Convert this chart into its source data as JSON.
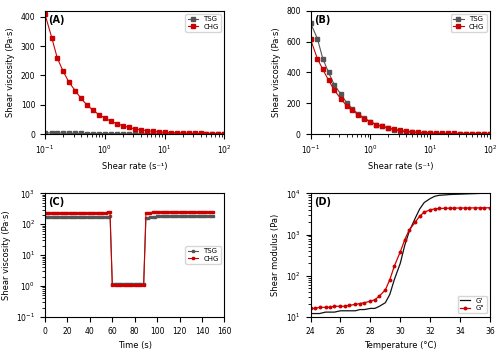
{
  "panel_A": {
    "title": "(A)",
    "xlabel": "Shear rate (s⁻¹)",
    "ylabel": "Shear viscosity (Pa·s)",
    "xlim": [
      0.1,
      100
    ],
    "ylim": [
      0,
      420
    ],
    "yticks": [
      0,
      100,
      200,
      300,
      400
    ],
    "TSG_color": "#555555",
    "CHG_color": "#cc0000",
    "TSG_x": [
      0.1,
      0.13,
      0.16,
      0.2,
      0.25,
      0.32,
      0.4,
      0.5,
      0.63,
      0.79,
      1.0,
      1.26,
      1.58,
      2.0,
      2.51,
      3.16,
      3.98,
      5.01,
      6.31,
      7.94,
      10.0,
      12.59,
      15.85,
      19.95,
      25.12,
      31.62,
      39.81,
      50.12,
      63.1,
      79.43,
      100.0
    ],
    "TSG_y": [
      5,
      4,
      4,
      3,
      3,
      3,
      2.5,
      2,
      2,
      2,
      1.8,
      1.5,
      1.5,
      1.5,
      1.3,
      1.2,
      1.2,
      1.0,
      1.0,
      0.9,
      0.8,
      0.8,
      0.7,
      0.7,
      0.6,
      0.5,
      0.5,
      0.4,
      0.4,
      0.3,
      0.2
    ],
    "CHG_x": [
      0.1,
      0.13,
      0.16,
      0.2,
      0.25,
      0.32,
      0.4,
      0.5,
      0.63,
      0.79,
      1.0,
      1.26,
      1.58,
      2.0,
      2.51,
      3.16,
      3.98,
      5.01,
      6.31,
      7.94,
      10.0,
      12.59,
      15.85,
      19.95,
      25.12,
      31.62,
      39.81,
      50.12,
      63.1,
      79.43,
      100.0
    ],
    "CHG_y": [
      408,
      328,
      260,
      215,
      178,
      148,
      122,
      100,
      82,
      67,
      55,
      44,
      36,
      29,
      23,
      18,
      15,
      12,
      10,
      8,
      6.5,
      5.5,
      4.5,
      3.8,
      3.2,
      2.8,
      2.4,
      2.0,
      1.8,
      1.5,
      1.2
    ]
  },
  "panel_B": {
    "title": "(B)",
    "xlabel": "Shear rate (s⁻¹)",
    "ylabel": "Shear viscosity (Pa·s)",
    "xlim": [
      0.1,
      100
    ],
    "ylim": [
      0,
      800
    ],
    "yticks": [
      0,
      200,
      400,
      600,
      800
    ],
    "TSG_color": "#555555",
    "CHG_color": "#cc0000",
    "TSG_x": [
      0.1,
      0.13,
      0.16,
      0.2,
      0.25,
      0.32,
      0.4,
      0.5,
      0.63,
      0.79,
      1.0,
      1.26,
      1.58,
      2.0,
      2.51,
      3.16,
      3.98,
      5.01,
      6.31,
      7.94,
      10.0,
      12.59,
      15.85,
      19.95,
      25.12,
      31.62,
      39.81,
      50.12,
      63.1,
      79.43,
      100.0
    ],
    "TSG_y": [
      720,
      620,
      490,
      400,
      320,
      260,
      205,
      165,
      130,
      105,
      80,
      62,
      50,
      40,
      30,
      22,
      16,
      12,
      8,
      6,
      5,
      4,
      3,
      2.5,
      2,
      1.8,
      1.5,
      1.3,
      1.1,
      0.9,
      0.7
    ],
    "CHG_x": [
      0.1,
      0.13,
      0.16,
      0.2,
      0.25,
      0.32,
      0.4,
      0.5,
      0.63,
      0.79,
      1.0,
      1.26,
      1.58,
      2.0,
      2.51,
      3.16,
      3.98,
      5.01,
      6.31,
      7.94,
      10.0,
      12.59,
      15.85,
      19.95,
      25.12,
      31.62,
      39.81,
      50.12,
      63.1,
      79.43,
      100.0
    ],
    "CHG_y": [
      615,
      490,
      420,
      350,
      285,
      230,
      185,
      155,
      125,
      100,
      80,
      62,
      50,
      40,
      31,
      24,
      19,
      15,
      12,
      10,
      8,
      7,
      6,
      5,
      4.5,
      4,
      3.5,
      3.2,
      2.8,
      2.5,
      2.0
    ]
  },
  "panel_C": {
    "title": "(C)",
    "xlabel": "Time (s)",
    "ylabel": "Shear viscosity (Pa·s)",
    "xlim": [
      0,
      160
    ],
    "ylim": [
      0.1,
      1000
    ],
    "xticks": [
      0,
      20,
      40,
      60,
      80,
      100,
      120,
      140,
      160
    ],
    "TSG_color": "#555555",
    "CHG_color": "#cc0000",
    "TSG_x": [
      0,
      2,
      4,
      6,
      8,
      10,
      12,
      14,
      16,
      18,
      20,
      22,
      24,
      26,
      28,
      30,
      32,
      34,
      36,
      38,
      40,
      42,
      44,
      46,
      48,
      50,
      52,
      54,
      56,
      58,
      60,
      62,
      64,
      66,
      68,
      70,
      72,
      74,
      76,
      78,
      80,
      82,
      84,
      86,
      88,
      90,
      92,
      94,
      96,
      98,
      100,
      102,
      104,
      106,
      108,
      110,
      112,
      114,
      116,
      118,
      120,
      122,
      124,
      126,
      128,
      130,
      132,
      134,
      136,
      138,
      140,
      142,
      144,
      146,
      148,
      150
    ],
    "TSG_y": [
      170,
      170,
      170,
      170,
      170,
      170,
      170,
      170,
      170,
      170,
      170,
      170,
      170,
      170,
      170,
      170,
      170,
      170,
      170,
      170,
      170,
      170,
      170,
      170,
      170,
      170,
      170,
      170,
      175,
      180,
      1.2,
      1.2,
      1.2,
      1.2,
      1.2,
      1.2,
      1.2,
      1.2,
      1.2,
      1.2,
      1.2,
      1.2,
      1.2,
      1.2,
      1.2,
      160,
      165,
      170,
      175,
      175,
      180,
      180,
      180,
      180,
      180,
      180,
      180,
      185,
      185,
      185,
      185,
      185,
      185,
      185,
      185,
      185,
      185,
      185,
      185,
      185,
      185,
      185,
      185,
      185,
      185,
      185,
      185
    ],
    "CHG_x": [
      0,
      2,
      4,
      6,
      8,
      10,
      12,
      14,
      16,
      18,
      20,
      22,
      24,
      26,
      28,
      30,
      32,
      34,
      36,
      38,
      40,
      42,
      44,
      46,
      48,
      50,
      52,
      54,
      56,
      58,
      60,
      62,
      64,
      66,
      68,
      70,
      72,
      74,
      76,
      78,
      80,
      82,
      84,
      86,
      88,
      90,
      92,
      94,
      96,
      98,
      100,
      102,
      104,
      106,
      108,
      110,
      112,
      114,
      116,
      118,
      120,
      122,
      124,
      126,
      128,
      130,
      132,
      134,
      136,
      138,
      140,
      142,
      144,
      146,
      148,
      150
    ],
    "CHG_y": [
      240,
      240,
      240,
      240,
      240,
      240,
      240,
      240,
      240,
      240,
      240,
      240,
      240,
      240,
      240,
      240,
      240,
      240,
      240,
      240,
      240,
      240,
      240,
      240,
      240,
      240,
      240,
      240,
      245,
      250,
      1.1,
      1.1,
      1.1,
      1.1,
      1.1,
      1.1,
      1.1,
      1.1,
      1.1,
      1.1,
      1.1,
      1.1,
      1.1,
      1.1,
      1.1,
      230,
      235,
      240,
      245,
      245,
      250,
      250,
      250,
      250,
      250,
      250,
      250,
      255,
      255,
      255,
      255,
      255,
      255,
      255,
      255,
      255,
      255,
      255,
      255,
      255,
      255,
      255,
      255,
      255,
      255,
      255,
      255
    ]
  },
  "panel_D": {
    "title": "(D)",
    "xlabel": "Temperature (°C)",
    "ylabel": "Shear modulus (Pa)",
    "xlim": [
      24,
      36
    ],
    "ylim": [
      10,
      10000
    ],
    "xticks": [
      24,
      26,
      28,
      30,
      32,
      34,
      36
    ],
    "Gprime_color": "#111111",
    "Gdprime_color": "#cc0000",
    "Gprime_x": [
      24,
      24.3,
      24.6,
      25,
      25.3,
      25.6,
      26,
      26.3,
      26.6,
      27,
      27.3,
      27.6,
      28,
      28.3,
      28.6,
      29,
      29.3,
      29.6,
      30,
      30.3,
      30.6,
      31,
      31.3,
      31.6,
      32,
      32.3,
      32.6,
      33,
      33.3,
      33.6,
      34,
      34.3,
      34.6,
      35,
      35.3,
      35.6,
      36
    ],
    "Gprime_y": [
      12,
      12,
      12,
      13,
      13,
      13,
      14,
      14,
      14,
      14,
      15,
      15,
      16,
      16,
      18,
      22,
      35,
      80,
      200,
      550,
      1200,
      2500,
      4200,
      6000,
      7500,
      8500,
      9000,
      9200,
      9400,
      9500,
      9600,
      9700,
      9800,
      9900,
      10000,
      10100,
      10200
    ],
    "Gdprime_x": [
      24,
      24.3,
      24.6,
      25,
      25.3,
      25.6,
      26,
      26.3,
      26.6,
      27,
      27.3,
      27.6,
      28,
      28.3,
      28.6,
      29,
      29.3,
      29.6,
      30,
      30.3,
      30.6,
      31,
      31.3,
      31.6,
      32,
      32.3,
      32.6,
      33,
      33.3,
      33.6,
      34,
      34.3,
      34.6,
      35,
      35.3,
      35.6,
      36
    ],
    "Gdprime_y": [
      16,
      16,
      17,
      17,
      17,
      18,
      18,
      18,
      19,
      20,
      21,
      22,
      24,
      26,
      32,
      45,
      80,
      170,
      380,
      750,
      1300,
      2000,
      2800,
      3500,
      4000,
      4200,
      4300,
      4350,
      4380,
      4400,
      4420,
      4430,
      4440,
      4450,
      4460,
      4470,
      4480
    ]
  }
}
